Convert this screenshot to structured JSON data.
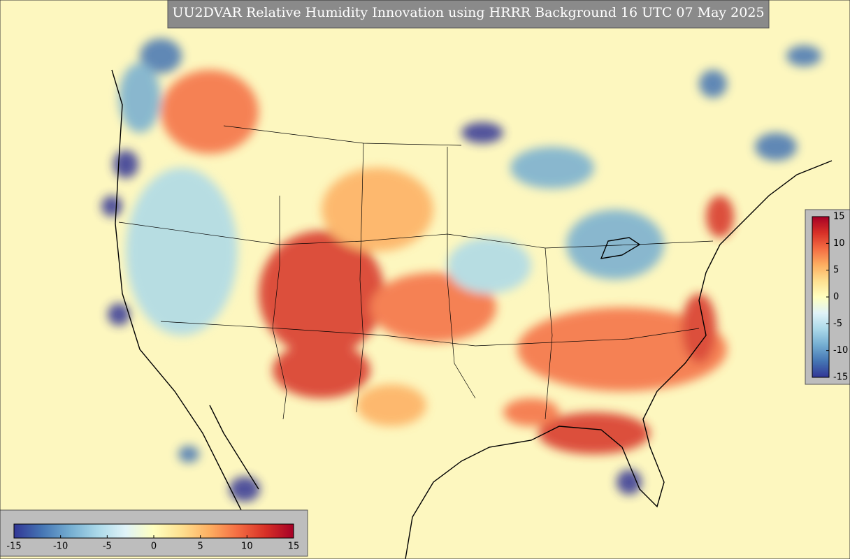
{
  "title": "UU2DVAR Relative Humidity Innovation using HRRR Background 16 UTC 07 May 2025",
  "colormap": [
    "#313695",
    "#4575b4",
    "#74add1",
    "#abd9e9",
    "#e0f3f8",
    "#ffffbf",
    "#fee090",
    "#fdae61",
    "#f46d43",
    "#d73027",
    "#a50026"
  ],
  "colorbars": [
    {
      "orientation": "vertical",
      "lim": [
        -15,
        15
      ],
      "ticks": [
        -15,
        -10,
        -5,
        0,
        5,
        10,
        15
      ]
    },
    {
      "orientation": "horizontal",
      "lim": [
        -15,
        15
      ],
      "ticks": [
        -15,
        -10,
        -5,
        0,
        5,
        10,
        15
      ]
    }
  ]
}
